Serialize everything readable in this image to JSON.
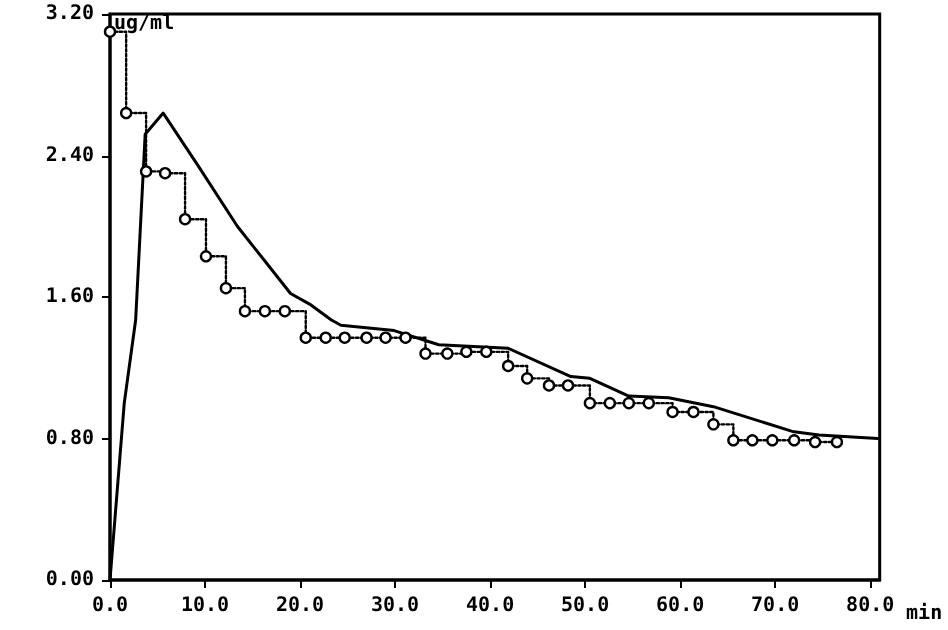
{
  "chart_data": {
    "type": "line",
    "xlabel": "min",
    "ylabel": "ug/ml",
    "xlim": [
      0,
      81
    ],
    "ylim": [
      0,
      3.2
    ],
    "xticks": [
      {
        "value": 0,
        "label": "0.0"
      },
      {
        "value": 10,
        "label": "10.0"
      },
      {
        "value": 20,
        "label": "20.0"
      },
      {
        "value": 30,
        "label": "30.0"
      },
      {
        "value": 40,
        "label": "40.0"
      },
      {
        "value": 50,
        "label": "50.0"
      },
      {
        "value": 60,
        "label": "60.0"
      },
      {
        "value": 70,
        "label": "70.0"
      },
      {
        "value": 80,
        "label": "80.0"
      }
    ],
    "yticks": [
      {
        "value": 0,
        "label": "0.00"
      },
      {
        "value": 0.8,
        "label": "0.80"
      },
      {
        "value": 1.6,
        "label": "1.60"
      },
      {
        "value": 2.4,
        "label": "2.40"
      },
      {
        "value": 3.2,
        "label": "3.20"
      }
    ],
    "grid": false,
    "series": [
      {
        "color": "#000000",
        "marker": "none",
        "line_style": "solid",
        "x": [
          0,
          1.5,
          2.7,
          3.7,
          5.6,
          9.3,
          13.4,
          19,
          21,
          23.3,
          24.3,
          29.9,
          34.6,
          41.9,
          48.5,
          50.5,
          54.6,
          58.8,
          63.5,
          71.8,
          74.6,
          80.8
        ],
        "values": [
          0,
          1.0,
          1.47,
          2.52,
          2.64,
          2.34,
          2.0,
          1.62,
          1.56,
          1.47,
          1.44,
          1.41,
          1.33,
          1.31,
          1.15,
          1.14,
          1.04,
          1.03,
          0.98,
          0.84,
          0.82,
          0.8
        ]
      },
      {
        "type": "step",
        "color": "#000000",
        "marker": "circle",
        "line_style": "dotted",
        "x": [
          0,
          1.7,
          3.8,
          5.8,
          7.9,
          10.1,
          12.2,
          14.2,
          16.3,
          18.4,
          20.6,
          22.7,
          24.7,
          27,
          29,
          31.1,
          33.2,
          35.5,
          37.5,
          39.6,
          41.9,
          43.9,
          46.2,
          48.2,
          50.5,
          52.6,
          54.6,
          56.7,
          59.2,
          61.4,
          63.5,
          65.6,
          67.6,
          69.7,
          72,
          74.2,
          76.5
        ],
        "values": [
          3.1,
          2.64,
          2.31,
          2.3,
          2.04,
          1.83,
          1.65,
          1.52,
          1.52,
          1.52,
          1.37,
          1.37,
          1.37,
          1.37,
          1.37,
          1.37,
          1.28,
          1.28,
          1.29,
          1.29,
          1.21,
          1.14,
          1.1,
          1.1,
          1.0,
          1.0,
          1.0,
          1.0,
          0.95,
          0.95,
          0.88,
          0.79,
          0.79,
          0.79,
          0.79,
          0.78,
          0.78
        ]
      }
    ]
  }
}
